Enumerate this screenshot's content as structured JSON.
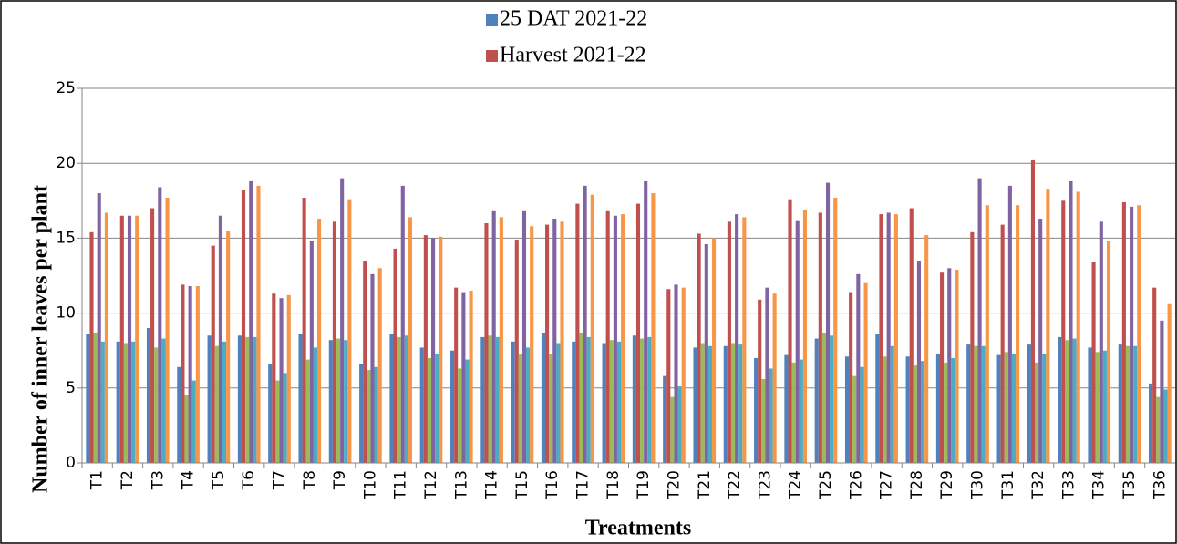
{
  "chart_data": {
    "type": "bar",
    "x_label": "Treatments",
    "y_label": "Number of inner leaves per plant",
    "categories": [
      "T1",
      "T2",
      "T3",
      "T4",
      "T5",
      "T6",
      "T7",
      "T8",
      "T9",
      "T10",
      "T11",
      "T12",
      "T13",
      "T14",
      "T15",
      "T16",
      "T17",
      "T18",
      "T19",
      "T20",
      "T21",
      "T22",
      "T23",
      "T24",
      "T25",
      "T26",
      "T27",
      "T28",
      "T29",
      "T30",
      "T31",
      "T32",
      "T33",
      "T34",
      "T35",
      "T36"
    ],
    "series": [
      {
        "name": "25 DAT 2021-22",
        "color": "#4f81bd",
        "values": [
          8.6,
          8.1,
          9.0,
          6.4,
          8.5,
          8.5,
          6.6,
          8.6,
          8.2,
          6.6,
          8.6,
          7.7,
          7.5,
          8.4,
          8.1,
          8.7,
          8.1,
          8.0,
          8.5,
          5.8,
          7.7,
          7.8,
          7.0,
          7.2,
          8.3,
          7.1,
          8.6,
          7.1,
          7.3,
          7.9,
          7.2,
          7.9,
          8.4,
          7.7,
          7.9,
          5.3
        ]
      },
      {
        "name": "Harvest 2021-22",
        "color": "#c0504d",
        "values": [
          15.4,
          16.5,
          17.0,
          11.9,
          14.5,
          18.2,
          11.3,
          17.7,
          16.1,
          13.5,
          14.3,
          15.2,
          11.7,
          16.0,
          14.9,
          15.9,
          17.3,
          16.8,
          17.3,
          11.6,
          15.3,
          16.1,
          10.9,
          17.6,
          16.7,
          11.4,
          16.6,
          17.0,
          12.7,
          15.4,
          15.9,
          20.2,
          17.5,
          13.4,
          17.4,
          11.7
        ]
      },
      {
        "color": "#9bbb59",
        "values": [
          8.7,
          8.0,
          7.7,
          4.5,
          7.8,
          8.4,
          5.5,
          6.9,
          8.3,
          6.2,
          8.4,
          7.0,
          6.3,
          8.5,
          7.3,
          7.3,
          8.7,
          8.2,
          8.3,
          4.4,
          8.0,
          8.0,
          5.6,
          6.7,
          8.7,
          5.8,
          7.1,
          6.5,
          6.7,
          7.8,
          7.4,
          6.7,
          8.2,
          7.4,
          7.8,
          4.4
        ]
      },
      {
        "color": "#8064a2",
        "values": [
          18.0,
          16.5,
          18.4,
          11.8,
          16.5,
          18.8,
          11.0,
          14.8,
          19.0,
          12.6,
          18.5,
          15.0,
          11.4,
          16.8,
          16.8,
          16.3,
          18.5,
          16.5,
          18.8,
          11.9,
          14.6,
          16.6,
          11.7,
          16.2,
          18.7,
          12.6,
          16.7,
          13.5,
          13.0,
          19.0,
          18.5,
          16.3,
          18.8,
          16.1,
          17.1,
          9.5
        ]
      },
      {
        "color": "#4bacc6",
        "values": [
          8.1,
          8.1,
          8.3,
          5.5,
          8.1,
          8.4,
          6.0,
          7.7,
          8.2,
          6.4,
          8.5,
          7.3,
          6.9,
          8.4,
          7.7,
          8.0,
          8.4,
          8.1,
          8.4,
          5.1,
          7.8,
          7.9,
          6.3,
          6.9,
          8.5,
          6.4,
          7.8,
          6.8,
          7.0,
          7.8,
          7.3,
          7.3,
          8.3,
          7.5,
          7.8,
          4.9
        ]
      },
      {
        "color": "#f79646",
        "values": [
          16.7,
          16.5,
          17.7,
          11.8,
          15.5,
          18.5,
          11.2,
          16.3,
          17.6,
          13.0,
          16.4,
          15.1,
          11.5,
          16.4,
          15.8,
          16.1,
          17.9,
          16.6,
          18.0,
          11.7,
          15.0,
          16.4,
          11.3,
          16.9,
          17.7,
          12.0,
          16.6,
          15.2,
          12.9,
          17.2,
          17.2,
          18.3,
          18.1,
          14.8,
          17.2,
          10.6
        ]
      }
    ],
    "ylim": [
      0,
      25
    ],
    "yticks": [
      0,
      5,
      10,
      15,
      20,
      25
    ],
    "grid": true
  }
}
